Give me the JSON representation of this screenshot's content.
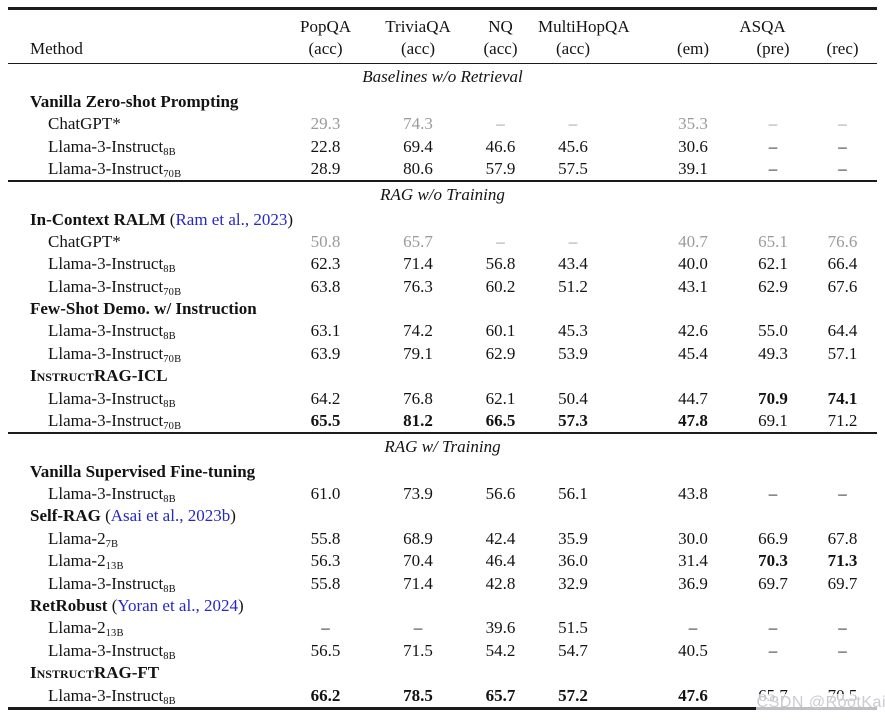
{
  "colors": {
    "text": "#131313",
    "muted_value": "#9a9a9a",
    "citation_blue": "#2626c9",
    "rule": "#1b1b1b",
    "watermark": "#c9cad6"
  },
  "watermark": {
    "text": "CSDN @RootKai"
  },
  "table": {
    "header": {
      "method": "Method",
      "columns": [
        {
          "name": "PopQA",
          "metric": "(acc)"
        },
        {
          "name": "TriviaQA",
          "metric": "(acc)"
        },
        {
          "name": "NQ",
          "metric": "(acc)"
        },
        {
          "name": "MultiHopQA",
          "metric": "(acc)"
        }
      ],
      "group": {
        "name": "ASQA",
        "metrics": [
          "(em)",
          "(pre)",
          "(rec)"
        ]
      }
    },
    "rows": [
      {
        "type": "section",
        "text": "Baselines w/o Retrieval"
      },
      {
        "type": "group",
        "label": "Vanilla Zero-shot Prompting"
      },
      {
        "type": "model",
        "label": "ChatGPT*",
        "muted": true,
        "values": [
          "29.3",
          "74.3",
          "–",
          "–",
          "35.3",
          "–",
          "–"
        ]
      },
      {
        "type": "model",
        "label": "Llama-3-Instruct",
        "sub": "8B",
        "values": [
          "22.8",
          "69.4",
          "46.6",
          "45.6",
          "30.6",
          "–",
          "–"
        ]
      },
      {
        "type": "model",
        "label": "Llama-3-Instruct",
        "sub": "70B",
        "values": [
          "28.9",
          "80.6",
          "57.9",
          "57.5",
          "39.1",
          "–",
          "–"
        ]
      },
      {
        "type": "rule"
      },
      {
        "type": "section",
        "text": "RAG w/o Training"
      },
      {
        "type": "group",
        "label": "In-Context RALM",
        "cite": "Ram et al., 2023"
      },
      {
        "type": "model",
        "label": "ChatGPT*",
        "muted": true,
        "values": [
          "50.8",
          "65.7",
          "–",
          "–",
          "40.7",
          "65.1",
          "76.6"
        ]
      },
      {
        "type": "model",
        "label": "Llama-3-Instruct",
        "sub": "8B",
        "values": [
          "62.3",
          "71.4",
          "56.8",
          "43.4",
          "40.0",
          "62.1",
          "66.4"
        ]
      },
      {
        "type": "model",
        "label": "Llama-3-Instruct",
        "sub": "70B",
        "values": [
          "63.8",
          "76.3",
          "60.2",
          "51.2",
          "43.1",
          "62.9",
          "67.6"
        ]
      },
      {
        "type": "group",
        "label": "Few-Shot Demo. w/ Instruction"
      },
      {
        "type": "model",
        "label": "Llama-3-Instruct",
        "sub": "8B",
        "values": [
          "63.1",
          "74.2",
          "60.1",
          "45.3",
          "42.6",
          "55.0",
          "64.4"
        ]
      },
      {
        "type": "model",
        "label": "Llama-3-Instruct",
        "sub": "70B",
        "values": [
          "63.9",
          "79.1",
          "62.9",
          "53.9",
          "45.4",
          "49.3",
          "57.1"
        ]
      },
      {
        "type": "group",
        "smallcaps": "Instruct",
        "label": "RAG-ICL"
      },
      {
        "type": "model",
        "label": "Llama-3-Instruct",
        "sub": "8B",
        "values": [
          "64.2",
          "76.8",
          "62.1",
          "50.4",
          "44.7",
          "70.9",
          "74.1"
        ],
        "bold": [
          5,
          6
        ]
      },
      {
        "type": "model",
        "label": "Llama-3-Instruct",
        "sub": "70B",
        "values": [
          "65.5",
          "81.2",
          "66.5",
          "57.3",
          "47.8",
          "69.1",
          "71.2"
        ],
        "bold": [
          0,
          1,
          2,
          3,
          4
        ]
      },
      {
        "type": "rule"
      },
      {
        "type": "section",
        "text": "RAG w/ Training"
      },
      {
        "type": "group",
        "label": "Vanilla Supervised Fine-tuning"
      },
      {
        "type": "model",
        "label": "Llama-3-Instruct",
        "sub": "8B",
        "values": [
          "61.0",
          "73.9",
          "56.6",
          "56.1",
          "43.8",
          "–",
          "–"
        ]
      },
      {
        "type": "group",
        "label": "Self-RAG",
        "cite": "Asai et al., 2023b"
      },
      {
        "type": "model",
        "label": "Llama-2",
        "sub": "7B",
        "values": [
          "55.8",
          "68.9",
          "42.4",
          "35.9",
          "30.0",
          "66.9",
          "67.8"
        ]
      },
      {
        "type": "model",
        "label": "Llama-2",
        "sub": "13B",
        "values": [
          "56.3",
          "70.4",
          "46.4",
          "36.0",
          "31.4",
          "70.3",
          "71.3"
        ],
        "bold": [
          5,
          6
        ]
      },
      {
        "type": "model",
        "label": "Llama-3-Instruct",
        "sub": "8B",
        "values": [
          "55.8",
          "71.4",
          "42.8",
          "32.9",
          "36.9",
          "69.7",
          "69.7"
        ]
      },
      {
        "type": "group",
        "label": "RetRobust",
        "cite": "Yoran et al., 2024"
      },
      {
        "type": "model",
        "label": "Llama-2",
        "sub": "13B",
        "values": [
          "–",
          "–",
          "39.6",
          "51.5",
          "–",
          "–",
          "–"
        ]
      },
      {
        "type": "model",
        "label": "Llama-3-Instruct",
        "sub": "8B",
        "values": [
          "56.5",
          "71.5",
          "54.2",
          "54.7",
          "40.5",
          "–",
          "–"
        ]
      },
      {
        "type": "group",
        "smallcaps": "Instruct",
        "label": "RAG-FT"
      },
      {
        "type": "model",
        "label": "Llama-3-Instruct",
        "sub": "8B",
        "values": [
          "66.2",
          "78.5",
          "65.7",
          "57.2",
          "47.6",
          "65.7",
          "70.5"
        ],
        "bold": [
          0,
          1,
          2,
          3,
          4
        ]
      }
    ]
  }
}
